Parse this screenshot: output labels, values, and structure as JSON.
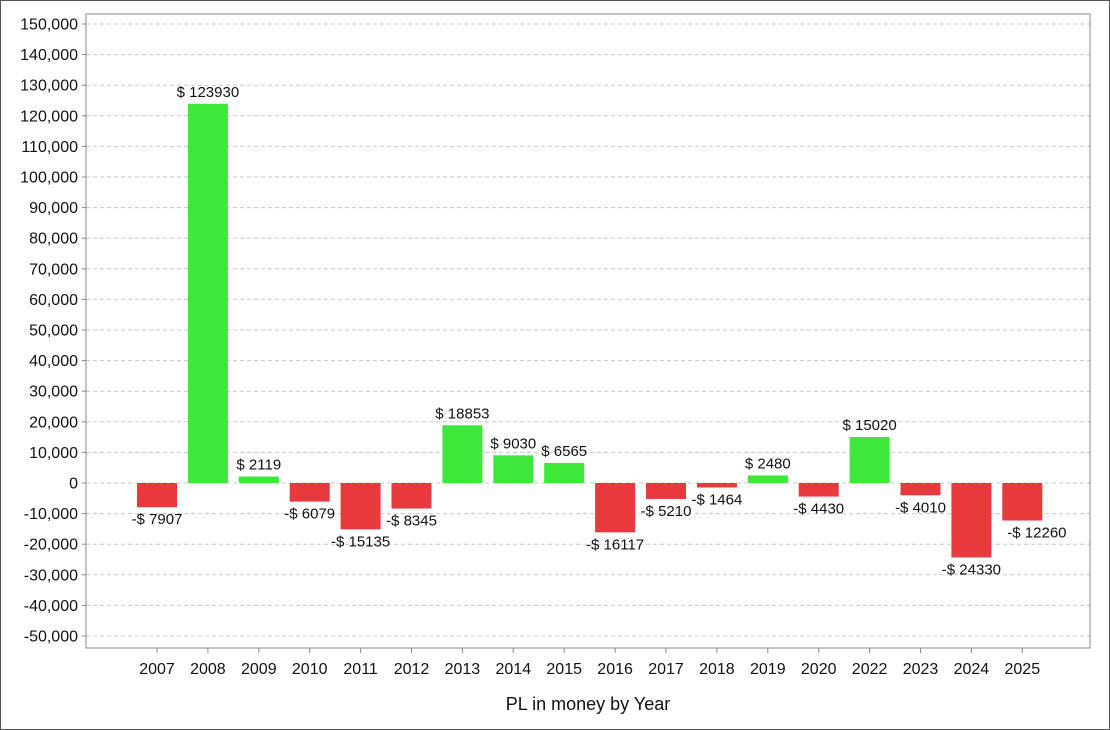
{
  "chart_data": {
    "type": "bar",
    "xlabel": "PL in money by Year",
    "ylabel": "",
    "ylim": [
      -55000,
      155000
    ],
    "yticks": [
      150000,
      140000,
      130000,
      120000,
      110000,
      100000,
      90000,
      80000,
      70000,
      60000,
      50000,
      40000,
      30000,
      20000,
      10000,
      0,
      -10000,
      -20000,
      -30000,
      -40000,
      -50000
    ],
    "ytick_labels": [
      "150,000",
      "140,000",
      "130,000",
      "120,000",
      "110,000",
      "100,000",
      "90,000",
      "80,000",
      "70,000",
      "60,000",
      "50,000",
      "40,000",
      "30,000",
      "20,000",
      "10,000",
      "0",
      "-10,000",
      "-20,000",
      "-30,000",
      "-40,000",
      "-50,000"
    ],
    "categories": [
      "2007",
      "2008",
      "2009",
      "2010",
      "2011",
      "2012",
      "2013",
      "2014",
      "2015",
      "2016",
      "2017",
      "2018",
      "2019",
      "2020",
      "2022",
      "2023",
      "2024",
      "2025"
    ],
    "values": [
      -7907,
      123930,
      2119,
      -6079,
      -15135,
      -8345,
      18853,
      9030,
      6565,
      -16117,
      -5210,
      -1464,
      2480,
      -4430,
      15020,
      -4010,
      -24330,
      -12260
    ],
    "data_labels": [
      "-$ 7907",
      "$ 123930",
      "$ 2119",
      "-$ 6079",
      "-$ 15135",
      "-$ 8345",
      "$ 18853",
      "$ 9030",
      "$ 6565",
      "-$ 16117",
      "-$ 5210",
      "-$ 1464",
      "$ 2480",
      "-$ 4430",
      "$ 15020",
      "-$ 4010",
      "-$ 24330",
      "-$ 12260"
    ],
    "grid": true,
    "colors": {
      "positive": "#3ee83a",
      "negative": "#e8393d",
      "grid": "#c8c8c8",
      "axis": "#888888"
    }
  }
}
